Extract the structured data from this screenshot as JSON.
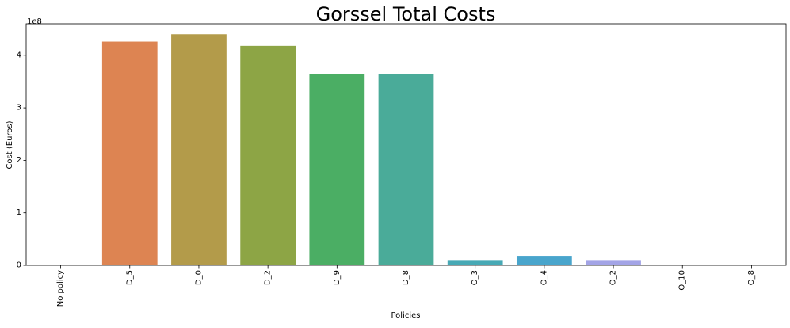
{
  "chart_data": {
    "type": "bar",
    "title": "Gorssel Total Costs",
    "xlabel": "Policies",
    "ylabel": "Cost (Euros)",
    "y_scale_label": "1e8",
    "y_scale": 100000000,
    "ylim": [
      0,
      460000000
    ],
    "yticks": [
      0,
      100000000,
      200000000,
      300000000,
      400000000
    ],
    "ytick_labels": [
      "0",
      "1",
      "2",
      "3",
      "4"
    ],
    "grid": false,
    "legend": "none",
    "categories": [
      "No policy",
      "D_5",
      "D_0",
      "D_2",
      "D_9",
      "D_8",
      "O_3",
      "O_4",
      "O_2",
      "O_10",
      "O_8"
    ],
    "values": [
      0,
      426000000,
      440000000,
      418000000,
      364000000,
      364000000,
      10000000,
      18000000,
      10000000,
      0,
      0
    ],
    "colors": [
      "#4c72b0",
      "#dd8452",
      "#b39b4a",
      "#8da545",
      "#4bae64",
      "#4aab99",
      "#47a9b5",
      "#49a5cc",
      "#a3a4e6",
      "#c19ce6",
      "#d492e0"
    ]
  }
}
